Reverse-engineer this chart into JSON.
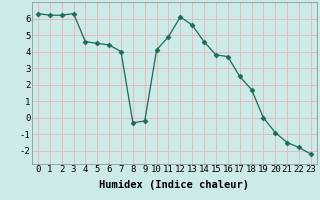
{
  "x": [
    0,
    1,
    2,
    3,
    4,
    5,
    6,
    7,
    8,
    9,
    10,
    11,
    12,
    13,
    14,
    15,
    16,
    17,
    18,
    19,
    20,
    21,
    22,
    23
  ],
  "y": [
    6.3,
    6.2,
    6.2,
    6.3,
    4.6,
    4.5,
    4.4,
    4.0,
    -0.3,
    -0.2,
    4.1,
    4.9,
    6.1,
    5.6,
    4.6,
    3.8,
    3.7,
    2.5,
    1.7,
    0.0,
    -0.9,
    -1.5,
    -1.8,
    -2.2
  ],
  "xlabel": "Humidex (Indice chaleur)",
  "ylabel": "",
  "xlim": [
    -0.5,
    23.5
  ],
  "ylim": [
    -2.8,
    7.0
  ],
  "yticks": [
    -2,
    -1,
    0,
    1,
    2,
    3,
    4,
    5,
    6
  ],
  "xticks": [
    0,
    1,
    2,
    3,
    4,
    5,
    6,
    7,
    8,
    9,
    10,
    11,
    12,
    13,
    14,
    15,
    16,
    17,
    18,
    19,
    20,
    21,
    22,
    23
  ],
  "line_color": "#1a6b5a",
  "marker": "D",
  "marker_size": 2.5,
  "bg_color": "#cceae7",
  "grid_color": "#e8b4b8",
  "tick_label_fontsize": 6.5,
  "xlabel_fontsize": 7.5
}
